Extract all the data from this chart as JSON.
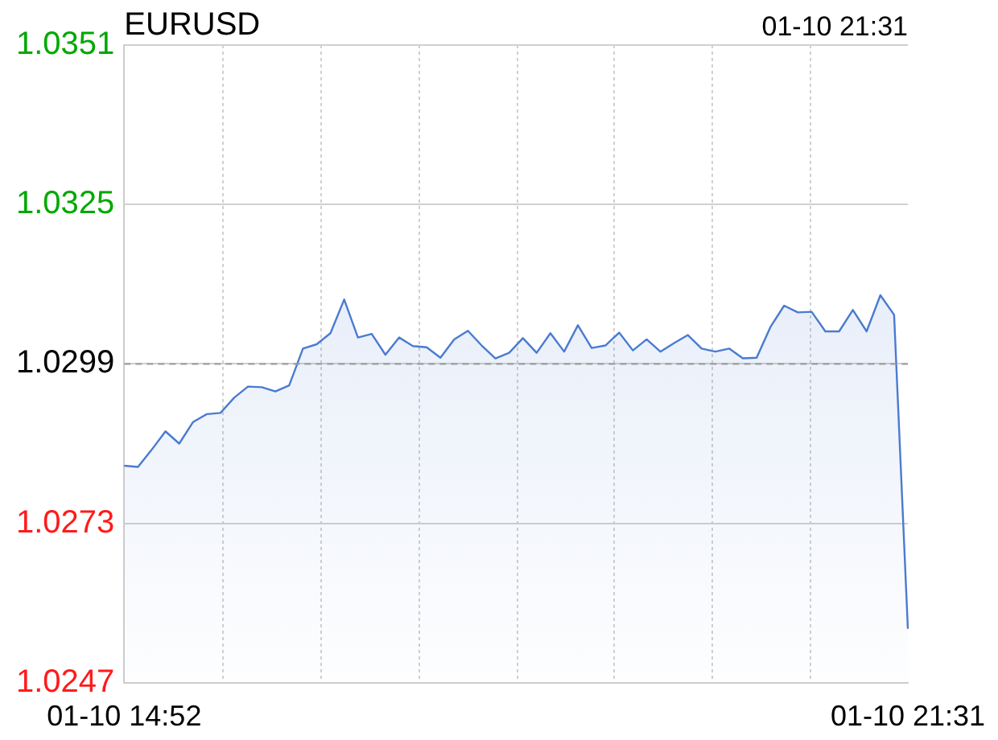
{
  "chart_data": {
    "type": "area",
    "title": "EURUSD",
    "annotations": [
      "01-10 21:31"
    ],
    "categories": [
      "01-10 14:52",
      null,
      null,
      null,
      null,
      null,
      null,
      null,
      null,
      null,
      null,
      null,
      null,
      null,
      null,
      null,
      null,
      null,
      null,
      null,
      null,
      null,
      null,
      null,
      null,
      null,
      null,
      null,
      null,
      null,
      null,
      null,
      null,
      null,
      null,
      null,
      null,
      null,
      null,
      null,
      null,
      null,
      null,
      null,
      null,
      null,
      null,
      null,
      null,
      null,
      null,
      null,
      null,
      null,
      null,
      null,
      null,
      "01-10 21:31"
    ],
    "ylim": [
      1.0247,
      1.0351
    ],
    "yticks": [
      1.0351,
      1.0325,
      1.0299,
      1.0273,
      1.0247
    ],
    "grid": true,
    "legend": false,
    "marker": "none",
    "ref_lines": [
      {
        "axis": "y",
        "value": 1.0299,
        "color": "#999999",
        "line_style": "dashed"
      }
    ],
    "series": [
      {
        "color": "#4a7bd0",
        "values": [
          1.02824,
          1.02822,
          1.0285,
          1.0288,
          1.0286,
          1.02895,
          1.02908,
          1.0291,
          1.02935,
          1.02953,
          1.02952,
          1.02945,
          1.02955,
          1.03015,
          1.03022,
          1.0304,
          1.03095,
          1.03033,
          1.03039,
          1.03005,
          1.03033,
          1.03019,
          1.03017,
          1.03,
          1.0303,
          1.03044,
          1.0302,
          1.02999,
          1.03008,
          1.03032,
          1.03008,
          1.0304,
          1.0301,
          1.03053,
          1.03016,
          1.0302,
          1.03041,
          1.03012,
          1.0303,
          1.0301,
          1.03024,
          1.03037,
          1.03015,
          1.0301,
          1.03015,
          1.02999,
          1.03,
          1.0305,
          1.03085,
          1.03074,
          1.03075,
          1.03043,
          1.03043,
          1.03078,
          1.03043,
          1.03102,
          1.0307,
          1.02558
        ]
      }
    ]
  }
}
